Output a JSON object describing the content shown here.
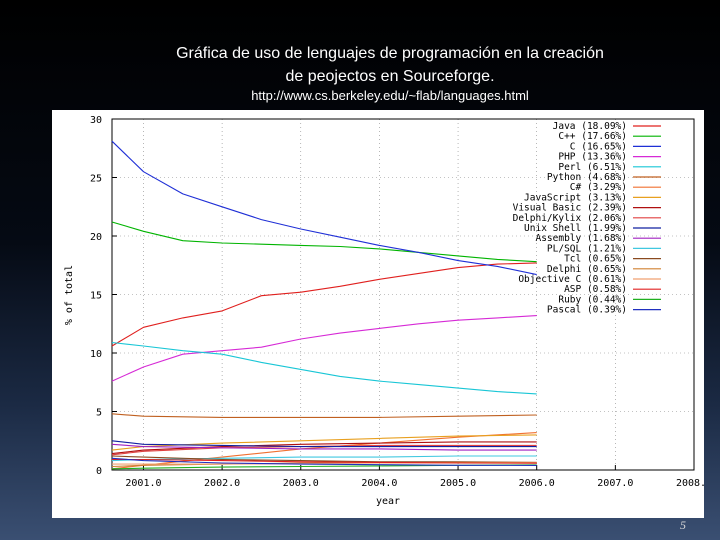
{
  "slide": {
    "title_line1": "Gráfica de uso de lenguajes de programación  en la creación",
    "title_line2": "de peojectos en Sourceforge.",
    "source_url": "http://www.cs.berkeley.edu/~flab/languages.html",
    "page_number": "5"
  },
  "chart_data": {
    "type": "line",
    "title": "",
    "xlabel": "year",
    "ylabel": "% of total",
    "xlim": [
      2000.6,
      2008.0
    ],
    "ylim": [
      0,
      30
    ],
    "xticks": [
      2001.0,
      2002.0,
      2003.0,
      2004.0,
      2005.0,
      2006.0,
      2007.0,
      2008.0
    ],
    "xtick_labels": [
      "2001.0",
      "2002.0",
      "2003.0",
      "2004.0",
      "2005.0",
      "2006.0",
      "2007.0",
      "2008.0"
    ],
    "yticks": [
      0,
      5,
      10,
      15,
      20,
      25,
      30
    ],
    "grid": true,
    "legend_position": "top-right",
    "series": [
      {
        "name": "Java",
        "legend": "Java (18.09%)",
        "color": "#e0201e",
        "x": [
          2000.6,
          2001.0,
          2001.5,
          2002.0,
          2002.5,
          2003.0,
          2003.5,
          2004.0,
          2004.5,
          2005.0,
          2005.5,
          2006.0
        ],
        "y": [
          10.6,
          12.2,
          13.0,
          13.6,
          14.9,
          15.2,
          15.7,
          16.3,
          16.8,
          17.3,
          17.6,
          17.7
        ]
      },
      {
        "name": "C++",
        "legend": "C++ (17.66%)",
        "color": "#00b400",
        "x": [
          2000.6,
          2001.0,
          2001.5,
          2002.0,
          2002.5,
          2003.0,
          2003.5,
          2004.0,
          2004.5,
          2005.0,
          2005.5,
          2006.0
        ],
        "y": [
          21.2,
          20.4,
          19.6,
          19.4,
          19.3,
          19.2,
          19.1,
          18.9,
          18.6,
          18.3,
          18.0,
          17.8
        ]
      },
      {
        "name": "C",
        "legend": "C (16.65%)",
        "color": "#1f2fd6",
        "x": [
          2000.6,
          2001.0,
          2001.5,
          2002.0,
          2002.5,
          2003.0,
          2003.5,
          2004.0,
          2004.5,
          2005.0,
          2005.5,
          2006.0
        ],
        "y": [
          28.1,
          25.5,
          23.6,
          22.5,
          21.4,
          20.6,
          19.9,
          19.2,
          18.6,
          17.9,
          17.4,
          16.7
        ]
      },
      {
        "name": "PHP",
        "legend": "PHP (13.36%)",
        "color": "#d62ad6",
        "x": [
          2000.6,
          2001.0,
          2001.5,
          2002.0,
          2002.5,
          2003.0,
          2003.5,
          2004.0,
          2004.5,
          2005.0,
          2005.5,
          2006.0
        ],
        "y": [
          7.6,
          8.8,
          9.9,
          10.2,
          10.5,
          11.2,
          11.7,
          12.1,
          12.5,
          12.8,
          13.0,
          13.2
        ]
      },
      {
        "name": "Perl",
        "legend": "Perl (6.51%)",
        "color": "#19c6d6",
        "x": [
          2000.6,
          2001.0,
          2001.5,
          2002.0,
          2002.5,
          2003.0,
          2003.5,
          2004.0,
          2004.5,
          2005.0,
          2005.5,
          2006.0
        ],
        "y": [
          10.9,
          10.6,
          10.2,
          9.9,
          9.2,
          8.6,
          8.0,
          7.6,
          7.3,
          7.0,
          6.7,
          6.5
        ]
      },
      {
        "name": "Python",
        "legend": "Python (4.68%)",
        "color": "#c06020",
        "x": [
          2000.6,
          2001.0,
          2002.0,
          2003.0,
          2004.0,
          2005.0,
          2006.0
        ],
        "y": [
          4.8,
          4.6,
          4.5,
          4.5,
          4.5,
          4.6,
          4.7
        ]
      },
      {
        "name": "C#",
        "legend": "C# (3.29%)",
        "color": "#f07030",
        "x": [
          2000.6,
          2001.0,
          2002.0,
          2003.0,
          2004.0,
          2005.0,
          2006.0
        ],
        "y": [
          0.1,
          0.4,
          1.1,
          1.8,
          2.3,
          2.8,
          3.2
        ]
      },
      {
        "name": "JavaScript",
        "legend": "JavaScript (3.13%)",
        "color": "#e8a020",
        "x": [
          2000.6,
          2001.0,
          2002.0,
          2003.0,
          2004.0,
          2005.0,
          2006.0
        ],
        "y": [
          1.7,
          2.0,
          2.3,
          2.5,
          2.7,
          2.9,
          3.0
        ]
      },
      {
        "name": "Visual Basic",
        "legend": "Visual Basic (2.39%)",
        "color": "#b01010",
        "x": [
          2000.6,
          2001.0,
          2002.0,
          2003.0,
          2004.0,
          2005.0,
          2006.0
        ],
        "y": [
          1.4,
          1.7,
          2.0,
          2.2,
          2.3,
          2.4,
          2.4
        ]
      },
      {
        "name": "Delphi/Kylix",
        "legend": "Delphi/Kylix (2.06%)",
        "color": "#e04040",
        "x": [
          2000.6,
          2001.0,
          2002.0,
          2003.0,
          2004.0,
          2005.0,
          2006.0
        ],
        "y": [
          1.3,
          1.6,
          1.9,
          2.0,
          2.1,
          2.1,
          2.1
        ]
      },
      {
        "name": "Unix Shell",
        "legend": "Unix Shell (1.99%)",
        "color": "#1020a0",
        "x": [
          2000.6,
          2001.0,
          2002.0,
          2003.0,
          2004.0,
          2005.0,
          2006.0
        ],
        "y": [
          2.5,
          2.2,
          2.1,
          2.0,
          2.0,
          2.0,
          2.0
        ]
      },
      {
        "name": "Assembly",
        "legend": "Assembly (1.68%)",
        "color": "#a020c0",
        "x": [
          2000.6,
          2001.0,
          2002.0,
          2003.0,
          2004.0,
          2005.0,
          2006.0
        ],
        "y": [
          2.2,
          2.0,
          1.9,
          1.8,
          1.8,
          1.7,
          1.7
        ]
      },
      {
        "name": "PL/SQL",
        "legend": "PL/SQL (1.21%)",
        "color": "#40c8e0",
        "x": [
          2000.6,
          2001.0,
          2002.0,
          2003.0,
          2004.0,
          2005.0,
          2006.0
        ],
        "y": [
          0.8,
          0.9,
          1.0,
          1.1,
          1.1,
          1.2,
          1.2
        ]
      },
      {
        "name": "Tcl",
        "legend": "Tcl (0.65%)",
        "color": "#8a4a20",
        "x": [
          2000.6,
          2001.0,
          2002.0,
          2003.0,
          2004.0,
          2005.0,
          2006.0
        ],
        "y": [
          1.2,
          1.1,
          0.9,
          0.8,
          0.7,
          0.7,
          0.65
        ]
      },
      {
        "name": "Delphi",
        "legend": "Delphi (0.65%)",
        "color": "#d08030",
        "x": [
          2000.6,
          2001.0,
          2002.0,
          2003.0,
          2004.0,
          2005.0,
          2006.0
        ],
        "y": [
          0.3,
          0.4,
          0.5,
          0.6,
          0.6,
          0.65,
          0.65
        ]
      },
      {
        "name": "Objective C",
        "legend": "Objective C (0.61%)",
        "color": "#f0a070",
        "x": [
          2000.6,
          2001.0,
          2002.0,
          2003.0,
          2004.0,
          2005.0,
          2006.0
        ],
        "y": [
          0.5,
          0.5,
          0.5,
          0.55,
          0.6,
          0.6,
          0.61
        ]
      },
      {
        "name": "ASP",
        "legend": "ASP (0.58%)",
        "color": "#e02020",
        "x": [
          2000.6,
          2001.0,
          2002.0,
          2003.0,
          2004.0,
          2005.0,
          2006.0
        ],
        "y": [
          0.9,
          0.9,
          0.8,
          0.7,
          0.65,
          0.6,
          0.58
        ]
      },
      {
        "name": "Ruby",
        "legend": "Ruby (0.44%)",
        "color": "#20b020",
        "x": [
          2000.6,
          2001.0,
          2002.0,
          2003.0,
          2004.0,
          2005.0,
          2006.0
        ],
        "y": [
          0.1,
          0.15,
          0.25,
          0.3,
          0.35,
          0.4,
          0.44
        ]
      },
      {
        "name": "Pascal",
        "legend": "Pascal (0.39%)",
        "color": "#2030c0",
        "x": [
          2000.6,
          2001.0,
          2002.0,
          2003.0,
          2004.0,
          2005.0,
          2006.0
        ],
        "y": [
          1.0,
          0.8,
          0.6,
          0.5,
          0.45,
          0.4,
          0.39
        ]
      }
    ]
  }
}
